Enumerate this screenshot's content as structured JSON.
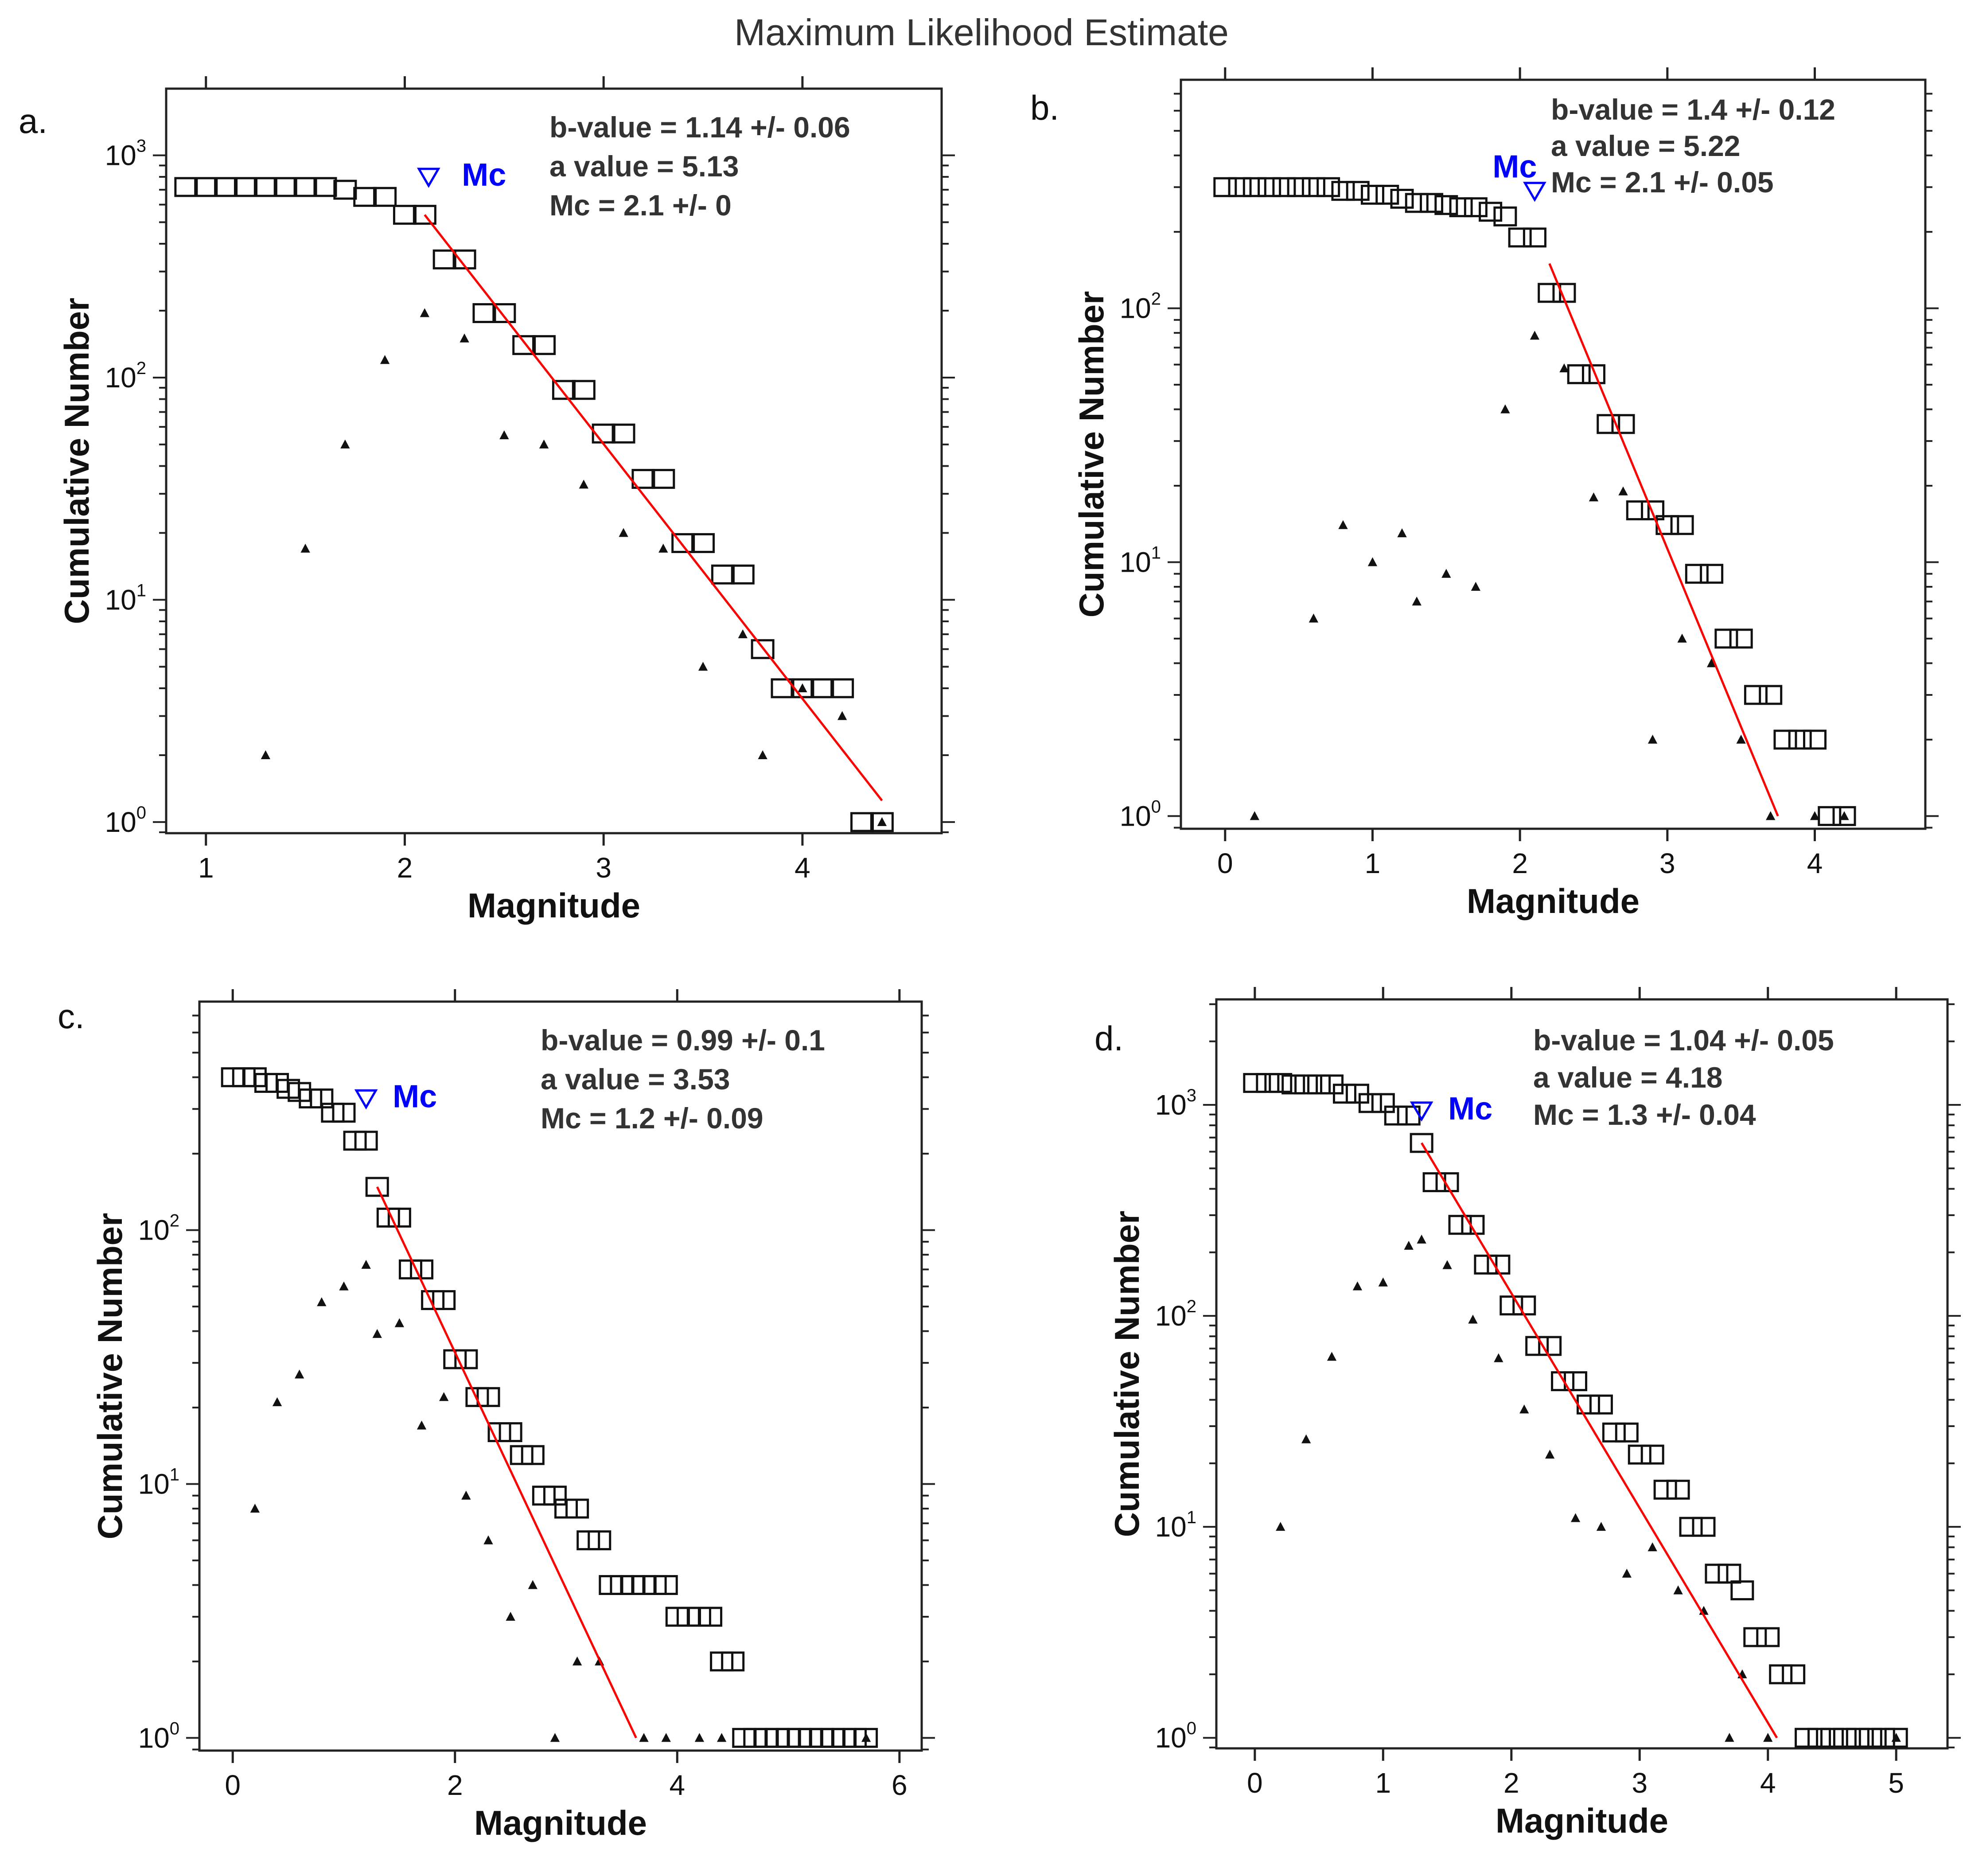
{
  "title": "Maximum Likelihood Estimate",
  "colors": {
    "fit": "#ff0000",
    "mc": "#0000ff",
    "axis": "#222222",
    "marker": "#111111"
  },
  "chart_data": [
    {
      "type": "scatter",
      "panel": "a.",
      "xlabel": "Magnitude",
      "ylabel": "Cumulative Number",
      "xlim": [
        0.8,
        4.7
      ],
      "ylim_log10": [
        -0.05,
        3.3
      ],
      "xticks": [
        1,
        2,
        3,
        4
      ],
      "yticks_exp": [
        0,
        1,
        2,
        3
      ],
      "annotations": [
        "b-value = 1.14 +/- 0.06",
        "a value = 5.13",
        "Mc = 2.1 +/- 0"
      ],
      "mc_label": "Mc",
      "mc_marker": {
        "x": 2.12,
        "y": 800
      },
      "series": [
        {
          "name": "cumulative",
          "marker": "square",
          "x": [
            0.9,
            1.0,
            1.1,
            1.2,
            1.3,
            1.4,
            1.5,
            1.6,
            1.7,
            1.8,
            1.9,
            2.0,
            2.1,
            2.2,
            2.3,
            2.4,
            2.5,
            2.6,
            2.7,
            2.8,
            2.9,
            3.0,
            3.1,
            3.2,
            3.3,
            3.4,
            3.5,
            3.6,
            3.7,
            3.8,
            3.9,
            4.0,
            4.1,
            4.2,
            4.3,
            4.4
          ],
          "y": [
            720,
            720,
            720,
            720,
            720,
            720,
            720,
            720,
            700,
            650,
            650,
            540,
            540,
            340,
            340,
            195,
            195,
            140,
            140,
            88,
            88,
            56,
            56,
            35,
            35,
            18,
            18,
            13,
            13,
            6,
            4,
            4,
            4,
            4,
            1,
            1
          ]
        },
        {
          "name": "non-cumulative",
          "marker": "triangle",
          "x": [
            1.3,
            1.5,
            1.7,
            1.9,
            2.1,
            2.3,
            2.5,
            2.7,
            2.9,
            3.1,
            3.3,
            3.5,
            3.7,
            3.8,
            4.0,
            4.2,
            4.4
          ],
          "y": [
            2,
            17,
            50,
            120,
            195,
            150,
            55,
            50,
            33,
            20,
            17,
            5,
            7,
            2,
            4,
            3,
            1
          ]
        },
        {
          "name": "fit",
          "line": true,
          "x": [
            2.1,
            4.4
          ],
          "y": [
            540,
            1.25
          ]
        }
      ]
    },
    {
      "type": "scatter",
      "panel": "b.",
      "xlabel": "Magnitude",
      "ylabel": "Cumulative Number",
      "xlim": [
        -0.3,
        4.75
      ],
      "ylim_log10": [
        -0.05,
        2.9
      ],
      "xticks": [
        0,
        1,
        2,
        3,
        4
      ],
      "yticks_exp": [
        0,
        1,
        2
      ],
      "annotations": [
        "b-value = 1.4 +/- 0.12",
        "a value = 5.22",
        "Mc = 2.1 +/- 0.05"
      ],
      "mc_label": "Mc",
      "mc_marker": {
        "x": 2.1,
        "y": 290
      },
      "series": [
        {
          "name": "cumulative",
          "marker": "square",
          "x": [
            0.0,
            0.1,
            0.2,
            0.3,
            0.4,
            0.5,
            0.6,
            0.7,
            0.8,
            0.9,
            1.0,
            1.1,
            1.2,
            1.3,
            1.4,
            1.5,
            1.6,
            1.7,
            1.8,
            1.9,
            2.0,
            2.1,
            2.2,
            2.3,
            2.4,
            2.5,
            2.6,
            2.7,
            2.8,
            2.9,
            3.0,
            3.1,
            3.2,
            3.3,
            3.4,
            3.5,
            3.6,
            3.7,
            3.8,
            3.9,
            4.0,
            4.1,
            4.2
          ],
          "y": [
            300,
            300,
            300,
            300,
            300,
            300,
            300,
            300,
            290,
            290,
            280,
            280,
            270,
            260,
            260,
            255,
            250,
            250,
            240,
            230,
            190,
            190,
            115,
            115,
            55,
            55,
            35,
            35,
            16,
            16,
            14,
            14,
            9,
            9,
            5,
            5,
            3,
            3,
            2,
            2,
            2,
            1,
            1
          ]
        },
        {
          "name": "non-cumulative",
          "marker": "triangle",
          "x": [
            0.2,
            0.6,
            0.8,
            1.0,
            1.2,
            1.3,
            1.5,
            1.7,
            1.9,
            2.1,
            2.3,
            2.5,
            2.7,
            2.9,
            3.1,
            3.3,
            3.5,
            3.7,
            4.0,
            4.2
          ],
          "y": [
            1,
            6,
            14,
            10,
            13,
            7,
            9,
            8,
            40,
            78,
            58,
            18,
            19,
            2,
            5,
            4,
            2,
            1,
            1,
            1
          ]
        },
        {
          "name": "fit",
          "line": true,
          "x": [
            2.2,
            3.75
          ],
          "y": [
            150,
            1
          ]
        }
      ]
    },
    {
      "type": "scatter",
      "panel": "c.",
      "xlabel": "Magnitude",
      "ylabel": "Cumulative Number",
      "xlim": [
        -0.3,
        6.2
      ],
      "ylim_log10": [
        -0.05,
        2.9
      ],
      "xticks": [
        0,
        2,
        4,
        6
      ],
      "yticks_exp": [
        0,
        1,
        2
      ],
      "annotations": [
        "b-value = 0.99 +/- 0.1",
        "a value = 3.53",
        "Mc = 1.2 +/- 0.09"
      ],
      "mc_label": "Mc",
      "mc_marker": {
        "x": 1.2,
        "y": 330
      },
      "series": [
        {
          "name": "cumulative",
          "marker": "square",
          "x": [
            0.0,
            0.1,
            0.2,
            0.3,
            0.4,
            0.5,
            0.6,
            0.7,
            0.8,
            0.9,
            1.0,
            1.1,
            1.2,
            1.3,
            1.4,
            1.5,
            1.6,
            1.7,
            1.8,
            1.9,
            2.0,
            2.1,
            2.2,
            2.3,
            2.4,
            2.5,
            2.6,
            2.7,
            2.8,
            2.9,
            3.0,
            3.1,
            3.2,
            3.3,
            3.4,
            3.5,
            3.6,
            3.7,
            3.8,
            3.9,
            4.0,
            4.1,
            4.2,
            4.3,
            4.4,
            4.5,
            4.6,
            4.7,
            4.8,
            4.9,
            5.0,
            5.1,
            5.2,
            5.3,
            5.4,
            5.5,
            5.6,
            5.7
          ],
          "y": [
            400,
            400,
            400,
            380,
            380,
            360,
            350,
            330,
            330,
            290,
            290,
            225,
            225,
            148,
            112,
            112,
            70,
            70,
            53,
            53,
            31,
            31,
            22,
            22,
            16,
            16,
            13,
            13,
            9,
            9,
            8,
            8,
            6,
            6,
            4,
            4,
            4,
            4,
            4,
            4,
            3,
            3,
            3,
            3,
            2,
            2,
            1,
            1,
            1,
            1,
            1,
            1,
            1,
            1,
            1,
            1,
            1,
            1
          ]
        },
        {
          "name": "non-cumulative",
          "marker": "triangle",
          "x": [
            0.2,
            0.4,
            0.6,
            0.8,
            1.0,
            1.2,
            1.3,
            1.5,
            1.7,
            1.9,
            2.1,
            2.3,
            2.5,
            2.7,
            2.9,
            3.1,
            3.3,
            3.7,
            3.9,
            4.2,
            4.4,
            5.7
          ],
          "y": [
            8,
            21,
            27,
            52,
            60,
            73,
            39,
            43,
            17,
            22,
            9,
            6,
            3,
            4,
            1,
            2,
            2,
            1,
            1,
            1,
            1,
            1
          ]
        },
        {
          "name": "fit",
          "line": true,
          "x": [
            1.3,
            3.63
          ],
          "y": [
            148,
            1
          ]
        }
      ]
    },
    {
      "type": "scatter",
      "panel": "d.",
      "xlabel": "Magnitude",
      "ylabel": "Cumulative Number",
      "xlim": [
        -0.3,
        5.4
      ],
      "ylim_log10": [
        -0.05,
        3.5
      ],
      "xticks": [
        0,
        1,
        2,
        3,
        4,
        5
      ],
      "yticks_exp": [
        0,
        1,
        2,
        3
      ],
      "annotations": [
        "b-value = 1.04 +/- 0.05",
        "a value = 4.18",
        "Mc = 1.3 +/- 0.04"
      ],
      "mc_label": "Mc",
      "mc_marker": {
        "x": 1.3,
        "y": 940
      },
      "series": [
        {
          "name": "cumulative",
          "marker": "square",
          "x": [
            0.0,
            0.1,
            0.2,
            0.3,
            0.4,
            0.5,
            0.6,
            0.7,
            0.8,
            0.9,
            1.0,
            1.1,
            1.2,
            1.3,
            1.4,
            1.5,
            1.6,
            1.7,
            1.8,
            1.9,
            2.0,
            2.1,
            2.2,
            2.3,
            2.4,
            2.5,
            2.6,
            2.7,
            2.8,
            2.9,
            3.0,
            3.1,
            3.2,
            3.3,
            3.4,
            3.5,
            3.6,
            3.7,
            3.8,
            3.9,
            4.0,
            4.1,
            4.2,
            4.3,
            4.4,
            4.5,
            4.6,
            4.7,
            4.8,
            4.9,
            5.0
          ],
          "y": [
            1270,
            1270,
            1270,
            1250,
            1250,
            1250,
            1250,
            1130,
            1130,
            1020,
            1020,
            890,
            890,
            660,
            430,
            430,
            270,
            270,
            175,
            175,
            112,
            112,
            72,
            72,
            49,
            49,
            38,
            38,
            28,
            28,
            22,
            22,
            15,
            15,
            10,
            10,
            6,
            6,
            5,
            3,
            3,
            2,
            2,
            1,
            1,
            1,
            1,
            1,
            1,
            1,
            1
          ]
        },
        {
          "name": "non-cumulative",
          "marker": "triangle",
          "x": [
            0.2,
            0.4,
            0.6,
            0.8,
            1.0,
            1.2,
            1.3,
            1.5,
            1.7,
            1.9,
            2.1,
            2.3,
            2.5,
            2.7,
            2.9,
            3.1,
            3.3,
            3.5,
            3.8,
            3.7,
            4.0,
            5.0
          ],
          "y": [
            10,
            26,
            64,
            138,
            144,
            215,
            230,
            174,
            96,
            63,
            36,
            22,
            11,
            10,
            6,
            8,
            5,
            4,
            2,
            1,
            1,
            1
          ]
        },
        {
          "name": "fit",
          "line": true,
          "x": [
            1.3,
            4.07
          ],
          "y": [
            660,
            1
          ]
        }
      ]
    }
  ]
}
